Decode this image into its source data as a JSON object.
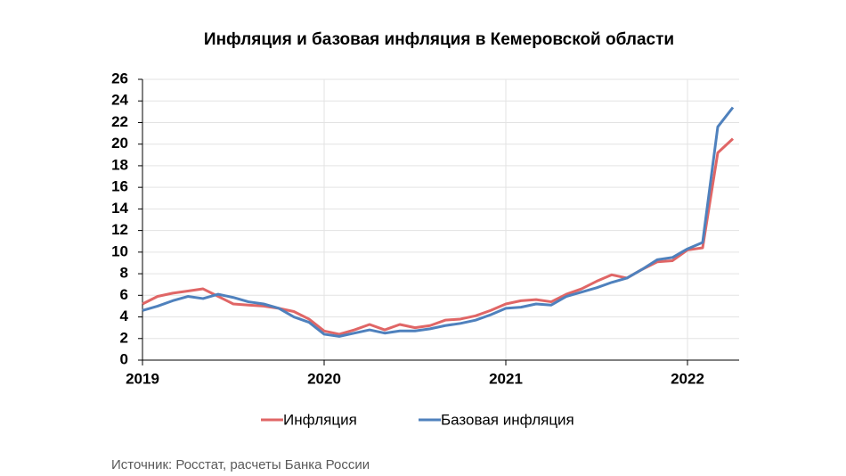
{
  "chart_data": {
    "type": "line",
    "title": "Инфляция и базовая инфляция в Кемеровской области",
    "categories": [
      "2019",
      null,
      null,
      null,
      null,
      null,
      null,
      null,
      null,
      null,
      null,
      null,
      "2020",
      null,
      null,
      null,
      null,
      null,
      null,
      null,
      null,
      null,
      null,
      null,
      "2021",
      null,
      null,
      null,
      null,
      null,
      null,
      null,
      null,
      null,
      null,
      null,
      "2022",
      null,
      null,
      null
    ],
    "series": [
      {
        "name": "Инфляция",
        "color": "#e06666",
        "values": [
          5.2,
          5.9,
          6.2,
          6.4,
          6.6,
          5.9,
          5.2,
          5.1,
          5.0,
          4.8,
          4.5,
          3.8,
          2.7,
          2.4,
          2.8,
          3.3,
          2.8,
          3.3,
          3.0,
          3.2,
          3.7,
          3.8,
          4.1,
          4.6,
          5.2,
          5.5,
          5.6,
          5.4,
          6.1,
          6.6,
          7.3,
          7.9,
          7.6,
          8.4,
          9.1,
          9.2,
          10.2,
          10.4,
          19.2,
          20.5
        ]
      },
      {
        "name": "Базовая инфляция",
        "color": "#4f81bd",
        "values": [
          4.6,
          5.0,
          5.5,
          5.9,
          5.7,
          6.1,
          5.8,
          5.4,
          5.2,
          4.8,
          4.0,
          3.5,
          2.4,
          2.2,
          2.5,
          2.8,
          2.5,
          2.7,
          2.7,
          2.9,
          3.2,
          3.4,
          3.7,
          4.2,
          4.8,
          4.9,
          5.2,
          5.1,
          5.9,
          6.3,
          6.7,
          7.2,
          7.6,
          8.4,
          9.3,
          9.5,
          10.3,
          10.9,
          21.6,
          23.4
        ]
      }
    ],
    "ylim": [
      0,
      26
    ],
    "yticks": [
      0,
      2,
      4,
      6,
      8,
      10,
      12,
      14,
      16,
      18,
      20,
      22,
      24,
      26
    ],
    "grid": true,
    "legend": "bottom",
    "source": "Источник: Росстат, расчеты Банка России"
  }
}
